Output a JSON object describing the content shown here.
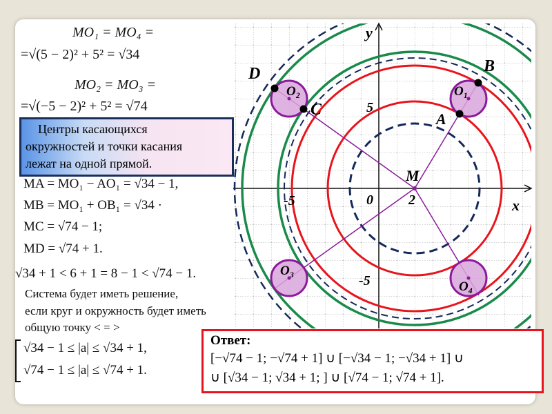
{
  "formulas": {
    "mo1_line1": "MO₁ = MO₄ =",
    "mo1_line2": "=√(5 − 2)² + 5² = √34",
    "mo2_line1": "MO₂ = MO₃ =",
    "mo2_line2": "=√(−5 − 2)² + 5² = √74"
  },
  "callout": {
    "line1": "Центры касающихся",
    "line2": "окружностей  и точки касания",
    "line3": "лежат на одной прямой."
  },
  "distances": [
    "MA = MO₁ − AO₁ = √34 − 1,",
    "MB = MO₁ + OB₁ = √34 ·",
    "MC = √74 − 1;",
    "MD = √74 + 1."
  ],
  "inequality": "√34 + 1 < 6 + 1 = 8 − 1 < √74 − 1.",
  "conclusion": [
    "Система будет иметь решение,",
    "если круг и окружность будет иметь",
    "общую точку < = >"
  ],
  "system": [
    "√34 − 1 ≤ |a| ≤ √34 + 1,",
    "√74 − 1 ≤ |a| ≤ √74 + 1."
  ],
  "answer": {
    "title": "Ответ:",
    "line1": "[−√74 − 1; −√74 + 1] ∪ [−√34 − 1; −√34 + 1] ∪",
    "line2": "∪ [√34 − 1; √34 + 1; ] ∪ [√74 − 1; √74 + 1]."
  },
  "diagram": {
    "axis_x": "x",
    "axis_y": "y",
    "tick_5": "5",
    "tick_minus5_x": "-5",
    "tick_minus5_y": "-5",
    "tick_0": "0",
    "tick_2": "2",
    "points": {
      "M": "M",
      "A": "A",
      "B": "B",
      "C": "C",
      "D": "D"
    },
    "centers": {
      "O1": "O₁",
      "O2": "O₂",
      "O3": "O₃",
      "O4": "O₄"
    },
    "colors": {
      "red": "#e8141b",
      "green": "#1a8a4a",
      "dashed": "#14285a",
      "purple": "#8a1a9a",
      "fill": "#d9a6dc"
    }
  }
}
